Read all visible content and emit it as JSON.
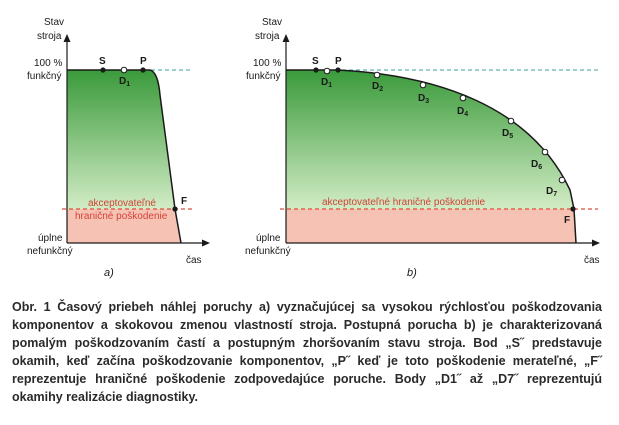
{
  "diagram_a": {
    "y_axis_title_line1": "Stav",
    "y_axis_title_line2": "stroja",
    "full_label_line1": "100 %",
    "full_label_line2": "funkčný",
    "failed_label_line1": "úplne",
    "failed_label_line2": "nefunkčný",
    "x_axis_title": "čas",
    "zone_label_line1": "akceptovateľné",
    "zone_label_line2": "hraničné poškodenie",
    "point_s": "S",
    "point_d1": "D",
    "point_d1_sub": "1",
    "point_p": "P",
    "point_f": "F",
    "sublabel": "a)"
  },
  "diagram_b": {
    "y_axis_title_line1": "Stav",
    "y_axis_title_line2": "stroja",
    "full_label_line1": "100 %",
    "full_label_line2": "funkčný",
    "failed_label_line1": "úplne",
    "failed_label_line2": "nefunkčný",
    "x_axis_title": "čas",
    "zone_label": "akceptovateľné hraničné poškodenie",
    "point_s": "S",
    "point_p": "P",
    "point_f": "F",
    "d_prefix": "D",
    "d_subs": [
      "1",
      "2",
      "3",
      "4",
      "5",
      "6",
      "7"
    ],
    "sublabel": "b)"
  },
  "caption": "Obr. 1 Časový priebeh náhlej poruchy a) vyznačujúcej sa vysokou rýchlosťou poškodzovania komponentov a skokovou zmenou vlastností stroja. Postupná porucha b) je charakterizovaná pomalým poškodzovaním častí a postupným zhoršovaním stavu stroja. Bod „S˝ predstavuje okamih, keď začína poškodzovanie komponentov, „P˝ keď je toto poškodenie merateľné, „F˝ reprezentuje hraničné poškodenie zodpovedajúce poruche. Body „D1˝ až „D7˝ reprezentujú okamihy realizácie diagnostiky.",
  "colors": {
    "green_top": "#3a9a3a",
    "green_bottom": "#d2ecc5",
    "pink": "#f6c2b4",
    "red_dash": "#d9503f",
    "teal_dash": "#3aa39a",
    "axis": "#1a1a1a"
  }
}
